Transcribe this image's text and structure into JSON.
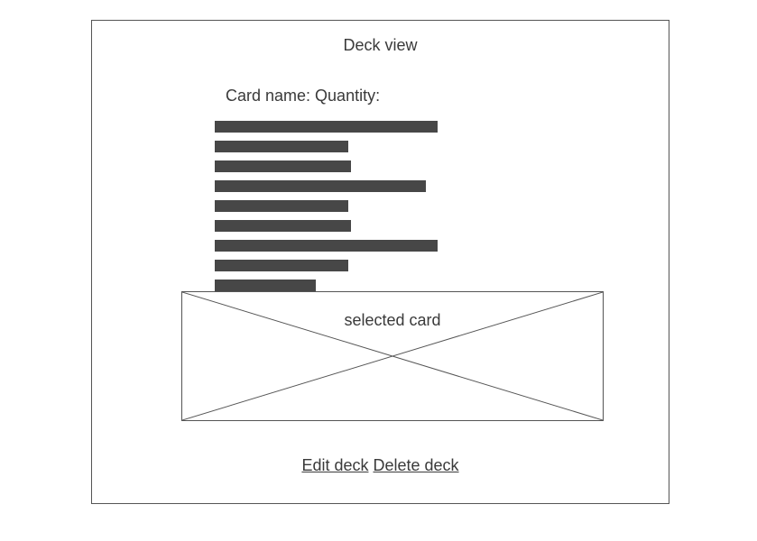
{
  "page": {
    "title": "Deck view"
  },
  "card_list": {
    "header": "Card name: Quantity:",
    "row_fill_fraction": [
      0.95,
      0.57,
      0.58,
      0.9,
      0.57,
      0.58,
      0.95,
      0.57,
      0.43
    ]
  },
  "selected_card": {
    "label": "selected card"
  },
  "actions": {
    "edit_label": "Edit deck",
    "delete_label": "Delete deck"
  },
  "colors": {
    "text": "#3a3a3a",
    "border": "#555555",
    "bar": "#474747"
  }
}
